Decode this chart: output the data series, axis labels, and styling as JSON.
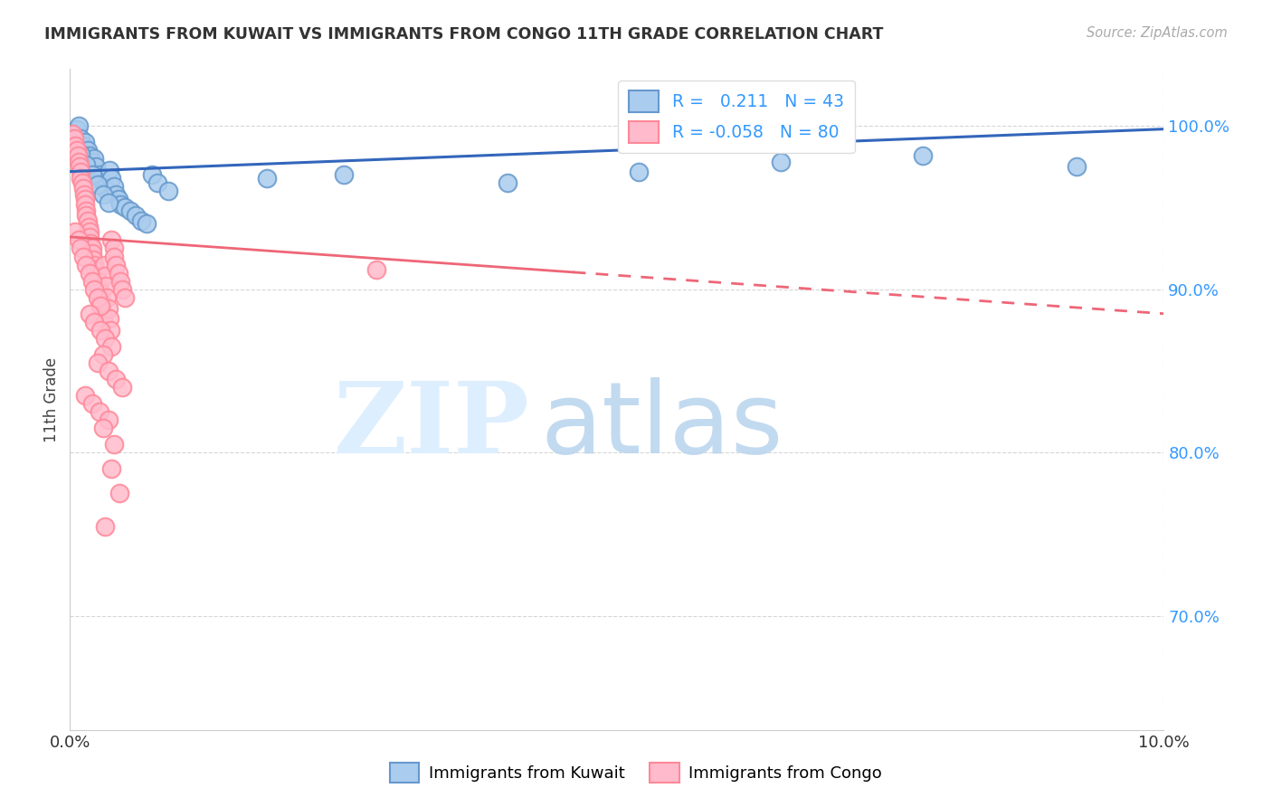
{
  "title": "IMMIGRANTS FROM KUWAIT VS IMMIGRANTS FROM CONGO 11TH GRADE CORRELATION CHART",
  "source": "Source: ZipAtlas.com",
  "ylabel": "11th Grade",
  "xlim": [
    0.0,
    10.0
  ],
  "ylim": [
    63.0,
    103.5
  ],
  "yticks": [
    70.0,
    80.0,
    90.0,
    100.0
  ],
  "ytick_labels": [
    "70.0%",
    "80.0%",
    "90.0%",
    "100.0%"
  ],
  "xtick_left_label": "0.0%",
  "xtick_right_label": "10.0%",
  "kuwait_edge_color": "#6699CC",
  "kuwait_face_color": "#aaccee",
  "congo_edge_color": "#FF8899",
  "congo_face_color": "#ffbbcc",
  "trend_kuwait_color": "#3366BB",
  "trend_congo_color": "#EE6677",
  "kuwait_trend_y0": 97.2,
  "kuwait_trend_y1": 99.8,
  "congo_trend_y0": 93.2,
  "congo_trend_y1": 88.5,
  "congo_solid_x_end": 4.6,
  "background_color": "#ffffff",
  "legend_r_kuwait": "R =   0.211",
  "legend_n_kuwait": "N = 43",
  "legend_r_congo": "R = -0.058",
  "legend_n_congo": "N = 80",
  "legend_text_color": "#3399FF",
  "ytick_color": "#3399FF",
  "kuwait_points_x": [
    0.04,
    0.06,
    0.08,
    0.1,
    0.12,
    0.14,
    0.16,
    0.18,
    0.2,
    0.22,
    0.24,
    0.26,
    0.28,
    0.3,
    0.32,
    0.34,
    0.36,
    0.38,
    0.4,
    0.42,
    0.44,
    0.46,
    0.5,
    0.55,
    0.6,
    0.65,
    0.7,
    0.75,
    0.8,
    0.9,
    0.1,
    0.15,
    0.2,
    0.25,
    0.3,
    0.35,
    1.8,
    2.5,
    4.0,
    6.5,
    9.2,
    7.8,
    5.2
  ],
  "kuwait_points_y": [
    99.5,
    99.8,
    100.0,
    99.2,
    98.8,
    99.0,
    98.5,
    98.2,
    97.8,
    98.0,
    97.5,
    97.0,
    96.8,
    96.5,
    96.2,
    96.0,
    97.3,
    96.8,
    96.3,
    95.8,
    95.5,
    95.2,
    95.0,
    94.8,
    94.5,
    94.2,
    94.0,
    97.0,
    96.5,
    96.0,
    98.3,
    97.6,
    97.0,
    96.4,
    95.8,
    95.3,
    96.8,
    97.0,
    96.5,
    97.8,
    97.5,
    98.2,
    97.2
  ],
  "congo_points_x": [
    0.02,
    0.04,
    0.05,
    0.06,
    0.07,
    0.08,
    0.09,
    0.1,
    0.1,
    0.11,
    0.12,
    0.13,
    0.14,
    0.14,
    0.15,
    0.15,
    0.16,
    0.17,
    0.18,
    0.18,
    0.19,
    0.2,
    0.2,
    0.21,
    0.22,
    0.23,
    0.24,
    0.25,
    0.26,
    0.27,
    0.28,
    0.28,
    0.29,
    0.3,
    0.3,
    0.31,
    0.32,
    0.33,
    0.34,
    0.35,
    0.36,
    0.37,
    0.38,
    0.4,
    0.4,
    0.42,
    0.44,
    0.46,
    0.48,
    0.5,
    0.05,
    0.08,
    0.1,
    0.12,
    0.15,
    0.18,
    0.2,
    0.22,
    0.25,
    0.28,
    0.18,
    0.22,
    0.28,
    0.32,
    0.38,
    0.3,
    0.25,
    0.35,
    0.42,
    0.48,
    0.14,
    0.2,
    0.27,
    0.35,
    0.3,
    0.4,
    0.38,
    0.45,
    2.8,
    0.32
  ],
  "congo_points_y": [
    99.5,
    99.2,
    98.8,
    98.5,
    98.2,
    97.8,
    97.5,
    97.2,
    96.8,
    96.5,
    96.2,
    95.8,
    95.5,
    95.2,
    94.8,
    94.5,
    94.2,
    93.8,
    93.5,
    93.2,
    92.8,
    92.5,
    92.2,
    91.8,
    91.5,
    91.2,
    90.8,
    90.5,
    90.2,
    89.8,
    89.5,
    89.2,
    88.8,
    88.5,
    88.2,
    91.5,
    90.8,
    90.2,
    89.5,
    88.8,
    88.2,
    87.5,
    93.0,
    92.5,
    92.0,
    91.5,
    91.0,
    90.5,
    90.0,
    89.5,
    93.5,
    93.0,
    92.5,
    92.0,
    91.5,
    91.0,
    90.5,
    90.0,
    89.5,
    89.0,
    88.5,
    88.0,
    87.5,
    87.0,
    86.5,
    86.0,
    85.5,
    85.0,
    84.5,
    84.0,
    83.5,
    83.0,
    82.5,
    82.0,
    81.5,
    80.5,
    79.0,
    77.5,
    91.2,
    75.5
  ]
}
